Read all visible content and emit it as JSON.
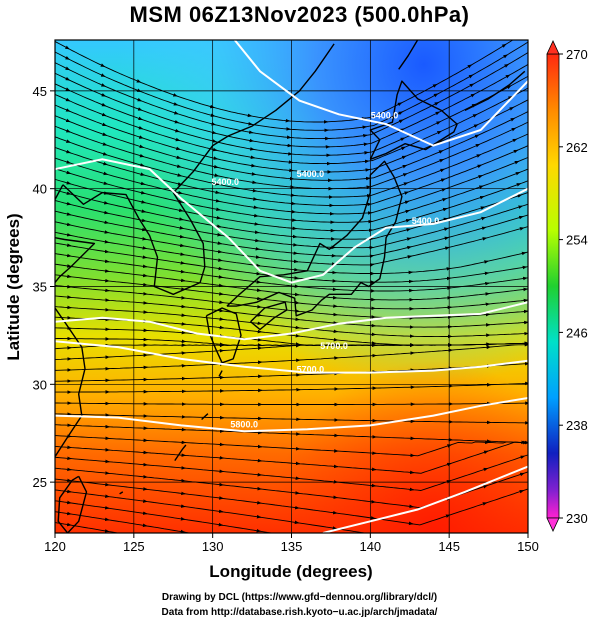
{
  "title": "MSM 06Z13Nov2023 (500.0hPa)",
  "map": {
    "xlabel": "Longitude (degrees)",
    "ylabel": "Latitude  (degrees)",
    "xlim": [
      120,
      150
    ],
    "ylim": [
      22.4,
      47.6
    ],
    "xticks": [
      120,
      125,
      130,
      135,
      140,
      145,
      150
    ],
    "yticks": [
      25,
      30,
      35,
      40,
      45
    ],
    "gridlines": true,
    "contour_labels": [
      {
        "text": "5400.0",
        "lon": 140.9,
        "lat": 43.6
      },
      {
        "text": "5400.0",
        "lon": 136.2,
        "lat": 40.6
      },
      {
        "text": "5400.0",
        "lon": 130.8,
        "lat": 40.2
      },
      {
        "text": "5400.0",
        "lon": 143.5,
        "lat": 38.2
      },
      {
        "text": "5700.0",
        "lon": 137.7,
        "lat": 31.8
      },
      {
        "text": "5700.0",
        "lon": 136.2,
        "lat": 30.6
      },
      {
        "text": "5800.0",
        "lon": 132.0,
        "lat": 27.8
      }
    ]
  },
  "colorbar": {
    "min": 230,
    "max": 270,
    "tick_labels": [
      "270",
      "262",
      "254",
      "246",
      "238",
      "230"
    ],
    "tick_values": [
      270,
      262,
      254,
      246,
      238,
      230
    ]
  },
  "credits": {
    "line1": "Drawing by DCL (https://www.gfd−dennou.org/library/dcl/)",
    "line2": "Data from http://database.rish.kyoto−u.ac.jp/arch/jmadata/"
  }
}
